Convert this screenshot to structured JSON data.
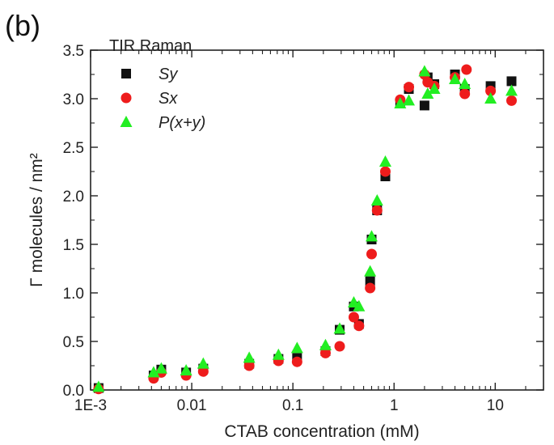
{
  "chart_data": {
    "type": "scatter",
    "panel_label": "(b)",
    "xlabel": "CTAB concentration (mM)",
    "ylabel": "Γ molecules / nm²",
    "xscale": "log",
    "xlim": [
      0.001,
      30
    ],
    "ylim": [
      0,
      3.5
    ],
    "x_tick_labels": [
      "1E-3",
      "0.01",
      "0.1",
      "1",
      "10"
    ],
    "x_tick_values": [
      0.001,
      0.01,
      0.1,
      1,
      10
    ],
    "y_tick_labels": [
      "0.0",
      "0.5",
      "1.0",
      "1.5",
      "2.0",
      "2.5",
      "3.0",
      "3.5"
    ],
    "y_tick_values": [
      0,
      0.5,
      1.0,
      1.5,
      2.0,
      2.5,
      3.0,
      3.5
    ],
    "grid": false,
    "legend": {
      "title": "TIR Raman",
      "position": "top-left"
    },
    "series": [
      {
        "name": "Sy",
        "marker": "square",
        "color": "#111111",
        "points": [
          [
            0.0012,
            0.02
          ],
          [
            0.0042,
            0.15
          ],
          [
            0.005,
            0.21
          ],
          [
            0.0088,
            0.18
          ],
          [
            0.013,
            0.22
          ],
          [
            0.037,
            0.27
          ],
          [
            0.072,
            0.32
          ],
          [
            0.11,
            0.33
          ],
          [
            0.21,
            0.4
          ],
          [
            0.29,
            0.62
          ],
          [
            0.4,
            0.86
          ],
          [
            0.45,
            0.68
          ],
          [
            0.58,
            1.12
          ],
          [
            0.6,
            1.55
          ],
          [
            0.68,
            1.85
          ],
          [
            0.82,
            2.2
          ],
          [
            1.15,
            2.95
          ],
          [
            1.4,
            3.1
          ],
          [
            2.0,
            2.93
          ],
          [
            2.15,
            3.22
          ],
          [
            2.5,
            3.15
          ],
          [
            4.0,
            3.25
          ],
          [
            5.0,
            3.1
          ],
          [
            9.0,
            3.13
          ],
          [
            14.5,
            3.18
          ]
        ]
      },
      {
        "name": "Sx",
        "marker": "circle",
        "color": "#ee1c1c",
        "points": [
          [
            0.0012,
            0.01
          ],
          [
            0.0042,
            0.12
          ],
          [
            0.005,
            0.18
          ],
          [
            0.0088,
            0.15
          ],
          [
            0.013,
            0.19
          ],
          [
            0.037,
            0.25
          ],
          [
            0.072,
            0.3
          ],
          [
            0.11,
            0.29
          ],
          [
            0.21,
            0.38
          ],
          [
            0.29,
            0.45
          ],
          [
            0.4,
            0.75
          ],
          [
            0.45,
            0.66
          ],
          [
            0.58,
            1.05
          ],
          [
            0.6,
            1.4
          ],
          [
            0.68,
            1.85
          ],
          [
            0.82,
            2.25
          ],
          [
            1.15,
            2.99
          ],
          [
            1.4,
            3.12
          ],
          [
            2.0,
            3.25
          ],
          [
            2.15,
            3.17
          ],
          [
            2.5,
            3.13
          ],
          [
            4.0,
            3.22
          ],
          [
            5.0,
            3.05
          ],
          [
            5.2,
            3.3
          ],
          [
            9.0,
            3.08
          ],
          [
            14.5,
            2.98
          ]
        ]
      },
      {
        "name": "P(x+y)",
        "marker": "triangle",
        "color": "#22ee22",
        "points": [
          [
            0.0012,
            0.03
          ],
          [
            0.0042,
            0.18
          ],
          [
            0.005,
            0.22
          ],
          [
            0.0088,
            0.2
          ],
          [
            0.013,
            0.27
          ],
          [
            0.037,
            0.33
          ],
          [
            0.072,
            0.36
          ],
          [
            0.11,
            0.43
          ],
          [
            0.21,
            0.46
          ],
          [
            0.29,
            0.63
          ],
          [
            0.4,
            0.9
          ],
          [
            0.45,
            0.86
          ],
          [
            0.58,
            1.22
          ],
          [
            0.6,
            1.58
          ],
          [
            0.68,
            1.95
          ],
          [
            0.82,
            2.35
          ],
          [
            1.15,
            2.95
          ],
          [
            1.4,
            2.98
          ],
          [
            2.0,
            3.28
          ],
          [
            2.15,
            3.05
          ],
          [
            2.5,
            3.1
          ],
          [
            4.0,
            3.2
          ],
          [
            5.0,
            3.15
          ],
          [
            9.0,
            3.0
          ],
          [
            14.5,
            3.08
          ]
        ]
      }
    ]
  }
}
